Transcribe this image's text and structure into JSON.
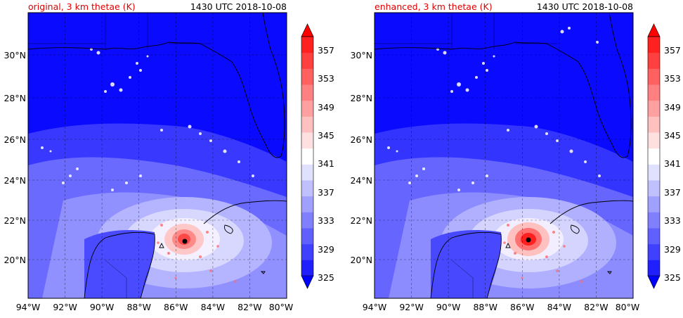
{
  "panels": [
    {
      "id": "original",
      "title": "original, 3 km thetae (K)",
      "time": "1430 UTC 2018-10-08",
      "enhanced": false
    },
    {
      "id": "enhanced",
      "title": "enhanced, 3 km thetae (K)",
      "time": "1430 UTC 2018-10-08",
      "enhanced": true
    }
  ],
  "lat_labels": [
    "30°N",
    "28°N",
    "26°N",
    "24°N",
    "22°N",
    "20°N"
  ],
  "lon_labels": [
    "94°W",
    "92°W",
    "90°W",
    "88°W",
    "86°W",
    "84°W",
    "82°W",
    "80°W"
  ],
  "colorbar": {
    "ticks": [
      "325",
      "329",
      "333",
      "337",
      "341",
      "345",
      "349",
      "353",
      "357"
    ],
    "colors": [
      "#0000ff",
      "#2020ff",
      "#4040ff",
      "#6060ff",
      "#8080ff",
      "#a0a0ff",
      "#c0c0ff",
      "#e0e0ff",
      "#ffffff",
      "#ffe0e0",
      "#ffc0c0",
      "#ffa0a0",
      "#ff8080",
      "#ff6060",
      "#ff4040",
      "#ff2020",
      "#ff0000"
    ],
    "extend": "both"
  }
}
